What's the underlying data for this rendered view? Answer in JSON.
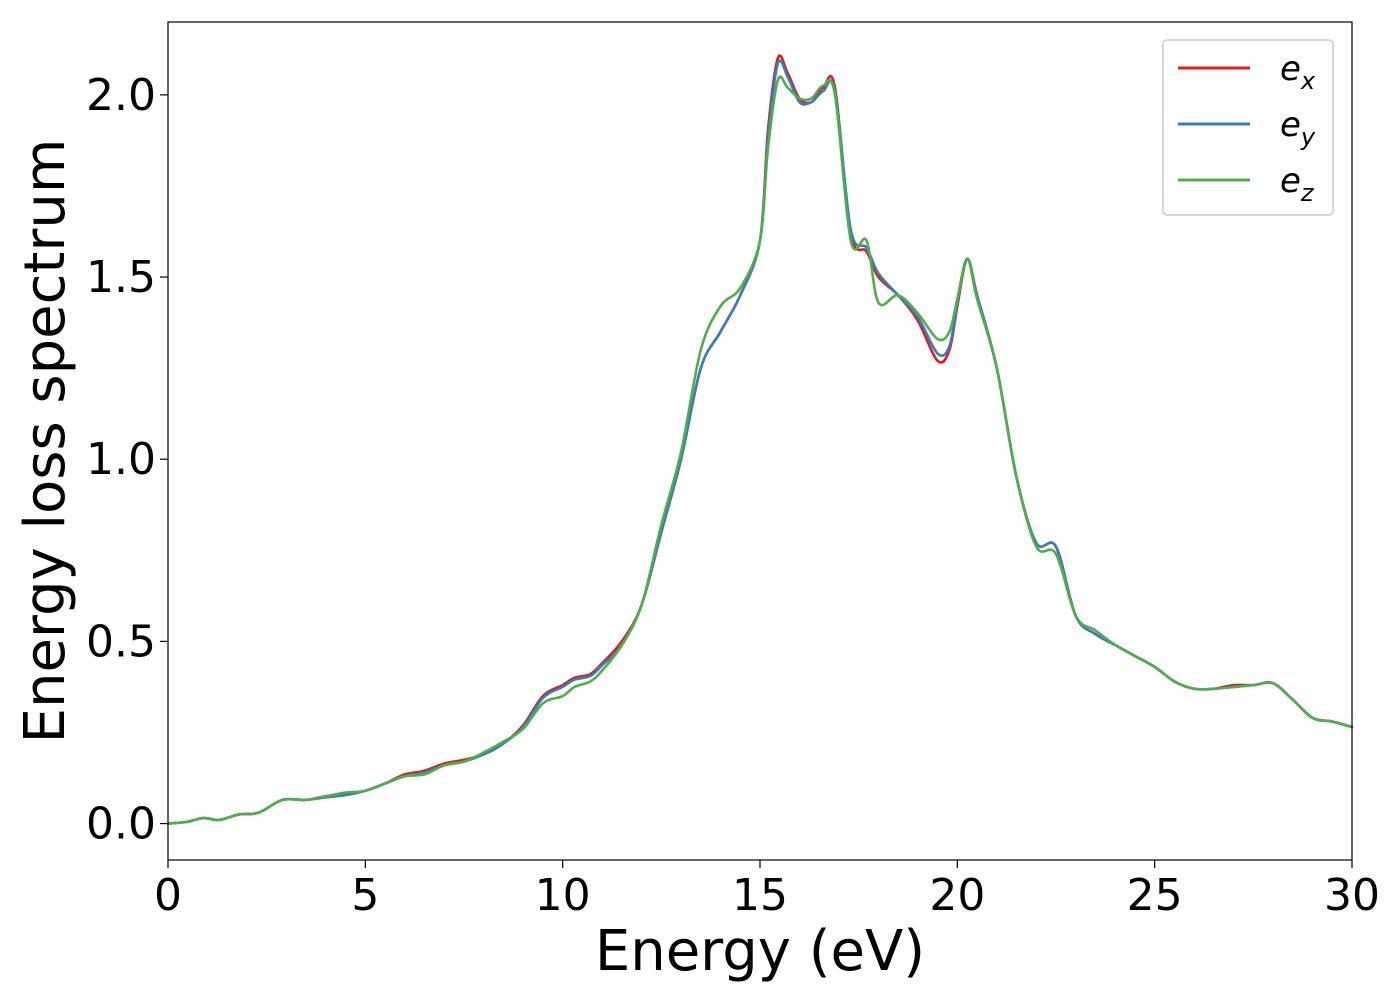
{
  "chart_data": {
    "type": "line",
    "xlabel": "Energy (eV)",
    "ylabel": "Energy loss spectrum",
    "xlim": [
      0,
      30
    ],
    "ylim": [
      -0.1,
      2.2
    ],
    "xticks": [
      0,
      5,
      10,
      15,
      20,
      25,
      30
    ],
    "xtick_labels": [
      "0",
      "5",
      "10",
      "15",
      "20",
      "25",
      "30"
    ],
    "yticks": [
      0.0,
      0.5,
      1.0,
      1.5,
      2.0
    ],
    "ytick_labels": [
      "0.0",
      "0.5",
      "1.0",
      "1.5",
      "2.0"
    ],
    "grid": false,
    "legend_position": "top-right",
    "series": [
      {
        "name": "e_x",
        "legend_base": "e",
        "legend_sub": "x",
        "color": "#e41a1c",
        "x": [
          0,
          0.5,
          0.9,
          1.3,
          1.8,
          2.3,
          2.9,
          3.5,
          4.0,
          4.5,
          5.0,
          5.5,
          6.0,
          6.5,
          7.0,
          7.5,
          8.0,
          8.5,
          9.0,
          9.5,
          10.0,
          10.3,
          10.7,
          11.0,
          11.5,
          12.0,
          12.5,
          13.0,
          13.5,
          14.0,
          14.5,
          15.0,
          15.2,
          15.45,
          15.7,
          16.0,
          16.3,
          16.6,
          16.9,
          17.3,
          17.7,
          18.0,
          18.5,
          19.0,
          19.5,
          19.8,
          20.0,
          20.25,
          20.5,
          21.0,
          21.5,
          22.0,
          22.5,
          23.0,
          23.5,
          24.0,
          24.5,
          25.0,
          25.5,
          26.0,
          26.5,
          27.0,
          27.5,
          28.0,
          28.5,
          29.0,
          29.5,
          30.0
        ],
        "values": [
          0.0,
          0.005,
          0.015,
          0.01,
          0.025,
          0.03,
          0.065,
          0.065,
          0.075,
          0.08,
          0.09,
          0.11,
          0.135,
          0.145,
          0.165,
          0.175,
          0.19,
          0.22,
          0.27,
          0.35,
          0.38,
          0.4,
          0.41,
          0.44,
          0.5,
          0.6,
          0.8,
          1.0,
          1.25,
          1.35,
          1.45,
          1.6,
          1.9,
          2.1,
          2.06,
          1.99,
          1.98,
          2.02,
          2.02,
          1.62,
          1.57,
          1.5,
          1.45,
          1.38,
          1.27,
          1.3,
          1.42,
          1.55,
          1.45,
          1.25,
          0.95,
          0.77,
          0.76,
          0.57,
          0.52,
          0.49,
          0.46,
          0.43,
          0.39,
          0.37,
          0.37,
          0.38,
          0.38,
          0.385,
          0.34,
          0.29,
          0.28,
          0.265
        ]
      },
      {
        "name": "e_y",
        "legend_base": "e",
        "legend_sub": "y",
        "color": "#377eb8",
        "x": [
          0,
          0.5,
          0.9,
          1.3,
          1.8,
          2.3,
          2.9,
          3.5,
          4.0,
          4.5,
          5.0,
          5.5,
          6.0,
          6.5,
          7.0,
          7.5,
          8.0,
          8.5,
          9.0,
          9.5,
          10.0,
          10.3,
          10.7,
          11.0,
          11.5,
          12.0,
          12.5,
          13.0,
          13.5,
          14.0,
          14.5,
          15.0,
          15.2,
          15.45,
          15.7,
          16.0,
          16.3,
          16.6,
          16.9,
          17.3,
          17.7,
          18.0,
          18.5,
          19.0,
          19.5,
          19.8,
          20.0,
          20.25,
          20.5,
          21.0,
          21.5,
          22.0,
          22.5,
          23.0,
          23.5,
          24.0,
          24.5,
          25.0,
          25.5,
          26.0,
          26.5,
          27.0,
          27.5,
          28.0,
          28.5,
          29.0,
          29.5,
          30.0
        ],
        "values": [
          0.0,
          0.005,
          0.015,
          0.01,
          0.025,
          0.03,
          0.065,
          0.065,
          0.072,
          0.078,
          0.09,
          0.11,
          0.13,
          0.14,
          0.16,
          0.17,
          0.19,
          0.22,
          0.265,
          0.345,
          0.375,
          0.395,
          0.405,
          0.435,
          0.49,
          0.6,
          0.8,
          1.0,
          1.25,
          1.35,
          1.45,
          1.6,
          1.88,
          2.085,
          2.05,
          1.98,
          1.98,
          2.01,
          2.01,
          1.63,
          1.58,
          1.51,
          1.45,
          1.39,
          1.29,
          1.31,
          1.43,
          1.55,
          1.45,
          1.25,
          0.95,
          0.77,
          0.76,
          0.57,
          0.52,
          0.49,
          0.46,
          0.43,
          0.39,
          0.37,
          0.37,
          0.375,
          0.38,
          0.385,
          0.34,
          0.29,
          0.28,
          0.265
        ]
      },
      {
        "name": "e_z",
        "legend_base": "e",
        "legend_sub": "z",
        "color": "#4daf4a",
        "x": [
          0,
          0.5,
          0.9,
          1.3,
          1.8,
          2.3,
          2.9,
          3.5,
          4.0,
          4.5,
          5.0,
          5.5,
          6.0,
          6.5,
          7.0,
          7.5,
          8.0,
          8.5,
          9.0,
          9.5,
          10.0,
          10.3,
          10.7,
          11.0,
          11.5,
          12.0,
          12.5,
          13.0,
          13.5,
          14.0,
          14.5,
          15.0,
          15.2,
          15.45,
          15.7,
          16.0,
          16.3,
          16.6,
          16.9,
          17.3,
          17.7,
          18.0,
          18.5,
          19.0,
          19.5,
          19.8,
          20.0,
          20.25,
          20.5,
          21.0,
          21.5,
          22.0,
          22.5,
          23.0,
          23.5,
          24.0,
          24.5,
          25.0,
          25.5,
          26.0,
          26.5,
          27.0,
          27.5,
          28.0,
          28.5,
          29.0,
          29.5,
          30.0
        ],
        "values": [
          0.0,
          0.005,
          0.015,
          0.01,
          0.025,
          0.03,
          0.065,
          0.065,
          0.075,
          0.085,
          0.09,
          0.11,
          0.13,
          0.135,
          0.16,
          0.17,
          0.195,
          0.225,
          0.26,
          0.33,
          0.35,
          0.375,
          0.39,
          0.42,
          0.49,
          0.6,
          0.82,
          1.02,
          1.3,
          1.42,
          1.47,
          1.6,
          1.85,
          2.04,
          2.02,
          1.99,
          1.99,
          2.025,
          2.0,
          1.6,
          1.6,
          1.43,
          1.45,
          1.4,
          1.33,
          1.35,
          1.44,
          1.55,
          1.44,
          1.25,
          0.95,
          0.76,
          0.74,
          0.57,
          0.53,
          0.49,
          0.46,
          0.43,
          0.39,
          0.37,
          0.37,
          0.375,
          0.38,
          0.385,
          0.34,
          0.29,
          0.28,
          0.265
        ]
      }
    ]
  }
}
